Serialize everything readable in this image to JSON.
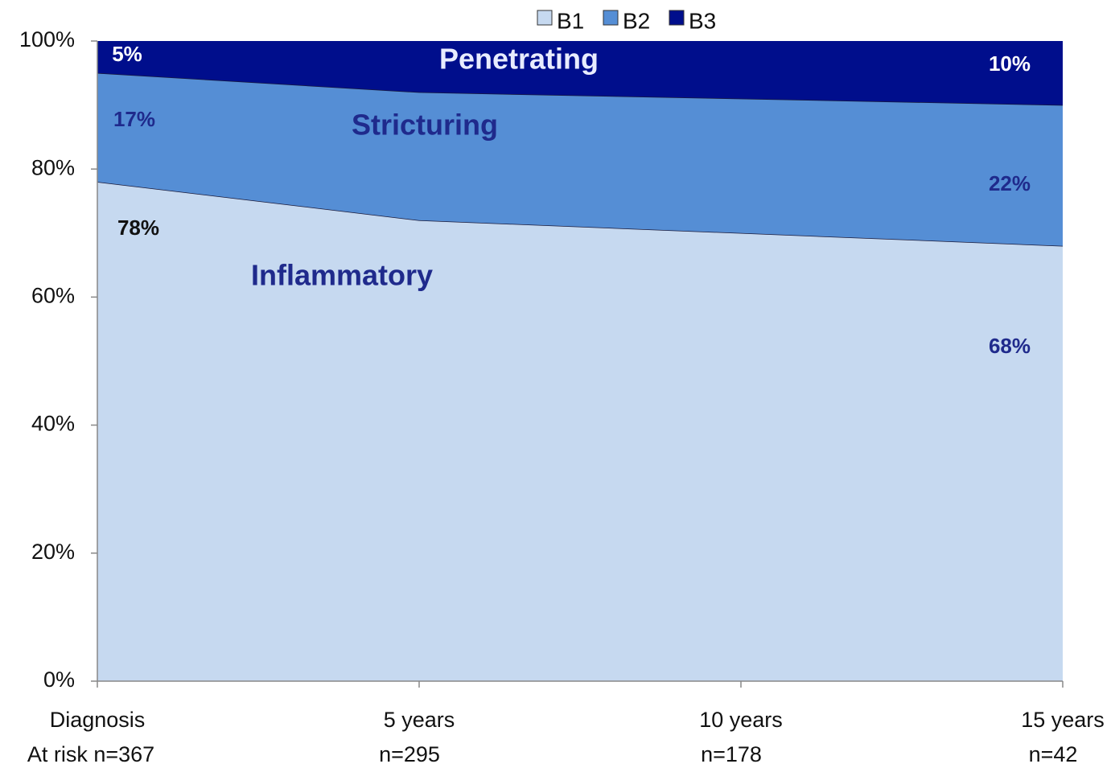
{
  "chart_data": {
    "type": "stacked_area",
    "categories": [
      "Diagnosis",
      "5 years",
      "10 years",
      "15 years"
    ],
    "at_risk": [
      "At risk n=367",
      "n=295",
      "n=178",
      "n=42"
    ],
    "series": [
      {
        "name": "B1",
        "label": "Inflammatory",
        "color": "#c6d9f0",
        "values": [
          78,
          72,
          70,
          68
        ],
        "value_labels": [
          "78%",
          null,
          null,
          "68%"
        ]
      },
      {
        "name": "B2",
        "label": "Stricturing",
        "color": "#558ed5",
        "values": [
          17,
          20,
          21,
          22
        ],
        "value_labels": [
          "17%",
          null,
          null,
          "22%"
        ]
      },
      {
        "name": "B3",
        "label": "Penetrating",
        "color": "#000e8c",
        "values": [
          5,
          8,
          9,
          10
        ],
        "value_labels": [
          "5%",
          null,
          null,
          "10%"
        ]
      }
    ],
    "ylim": [
      0,
      100
    ],
    "yticks": [
      {
        "value": 0,
        "label": "0%"
      },
      {
        "value": 20,
        "label": "20%"
      },
      {
        "value": 40,
        "label": "40%"
      },
      {
        "value": 60,
        "label": "60%"
      },
      {
        "value": 80,
        "label": "80%"
      },
      {
        "value": 100,
        "label": "100%"
      }
    ],
    "legend": "top"
  }
}
